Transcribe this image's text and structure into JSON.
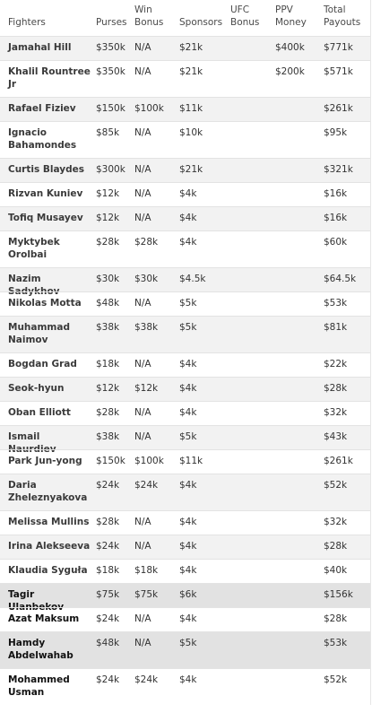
{
  "headers": {
    "fighters": "Fighters",
    "purses": "Purses",
    "win_bonus": "Win Bonus",
    "sponsors": "Sponsors",
    "ufc_bonus": "UFC Bonus",
    "ppv_money": "PPV Money",
    "total_payouts": "Total Payouts"
  },
  "rows": [
    {
      "name": "Jamahal Hill",
      "purse": "$350k",
      "win": "N/A",
      "sponsors": "$21k",
      "ufc": "",
      "ppv": "$400k",
      "total": "$771k"
    },
    {
      "name": "Khalil Rountree Jr",
      "purse": "$350k",
      "win": "N/A",
      "sponsors": "$21k",
      "ufc": "",
      "ppv": "$200k",
      "total": "$571k"
    },
    {
      "name": "Rafael Fiziev",
      "purse": "$150k",
      "win": "$100k",
      "sponsors": "$11k",
      "ufc": "",
      "ppv": "",
      "total": "$261k"
    },
    {
      "name": "Ignacio Bahamondes",
      "purse": "$85k",
      "win": "N/A",
      "sponsors": "$10k",
      "ufc": "",
      "ppv": "",
      "total": "$95k"
    },
    {
      "name": "Curtis Blaydes",
      "purse": "$300k",
      "win": "N/A",
      "sponsors": "$21k",
      "ufc": "",
      "ppv": "",
      "total": "$321k"
    },
    {
      "name": "Rizvan Kuniev",
      "purse": "$12k",
      "win": "N/A",
      "sponsors": "$4k",
      "ufc": "",
      "ppv": "",
      "total": "$16k"
    },
    {
      "name": "Tofiq Musayev",
      "purse": "$12k",
      "win": "N/A",
      "sponsors": "$4k",
      "ufc": "",
      "ppv": "",
      "total": "$16k"
    },
    {
      "name": "Myktybek Orolbai",
      "purse": "$28k",
      "win": "$28k",
      "sponsors": "$4k",
      "ufc": "",
      "ppv": "",
      "total": "$60k"
    },
    {
      "name": "Nazim Sadykhov",
      "purse": "$30k",
      "win": "$30k",
      "sponsors": "$4.5k",
      "ufc": "",
      "ppv": "",
      "total": "$64.5k"
    },
    {
      "name": "Nikolas Motta",
      "purse": "$48k",
      "win": "N/A",
      "sponsors": "$5k",
      "ufc": "",
      "ppv": "",
      "total": "$53k"
    },
    {
      "name": "Muhammad Naimov",
      "purse": "$38k",
      "win": "$38k",
      "sponsors": "$5k",
      "ufc": "",
      "ppv": "",
      "total": "$81k"
    },
    {
      "name": "Bogdan Grad",
      "purse": "$18k",
      "win": "N/A",
      "sponsors": "$4k",
      "ufc": "",
      "ppv": "",
      "total": "$22k"
    },
    {
      "name": "Seok-hyun",
      "purse": "$12k",
      "win": "$12k",
      "sponsors": "$4k",
      "ufc": "",
      "ppv": "",
      "total": "$28k"
    },
    {
      "name": "Oban Elliott",
      "purse": "$28k",
      "win": "N/A",
      "sponsors": "$4k",
      "ufc": "",
      "ppv": "",
      "total": "$32k"
    },
    {
      "name": "Ismail Naurdiev",
      "purse": "$38k",
      "win": "N/A",
      "sponsors": "$5k",
      "ufc": "",
      "ppv": "",
      "total": "$43k"
    },
    {
      "name": "Park Jun-yong",
      "purse": "$150k",
      "win": "$100k",
      "sponsors": "$11k",
      "ufc": "",
      "ppv": "",
      "total": "$261k"
    },
    {
      "name": "Daria Zheleznyakova",
      "purse": "$24k",
      "win": "$24k",
      "sponsors": "$4k",
      "ufc": "",
      "ppv": "",
      "total": "$52k"
    },
    {
      "name": "Melissa Mullins",
      "purse": "$28k",
      "win": "N/A",
      "sponsors": "$4k",
      "ufc": "",
      "ppv": "",
      "total": "$32k"
    },
    {
      "name": "Irina Alekseeva",
      "purse": "$24k",
      "win": "N/A",
      "sponsors": "$4k",
      "ufc": "",
      "ppv": "",
      "total": "$28k"
    },
    {
      "name": "Klaudia Syguła",
      "purse": "$18k",
      "win": "$18k",
      "sponsors": "$4k",
      "ufc": "",
      "ppv": "",
      "total": "$40k"
    },
    {
      "name": "Tagir Ulanbekov",
      "purse": "$75k",
      "win": "$75k",
      "sponsors": "$6k",
      "ufc": "",
      "ppv": "",
      "total": "$156k"
    },
    {
      "name": "Azat Maksum",
      "purse": "$24k",
      "win": "N/A",
      "sponsors": "$4k",
      "ufc": "",
      "ppv": "",
      "total": "$28k"
    },
    {
      "name": "Hamdy Abdelwahab",
      "purse": "$48k",
      "win": "N/A",
      "sponsors": "$5k",
      "ufc": "",
      "ppv": "",
      "total": "$53k"
    },
    {
      "name": "Mohammed Usman",
      "purse": "$24k",
      "win": "$24k",
      "sponsors": "$4k",
      "ufc": "",
      "ppv": "",
      "total": "$52k"
    }
  ]
}
